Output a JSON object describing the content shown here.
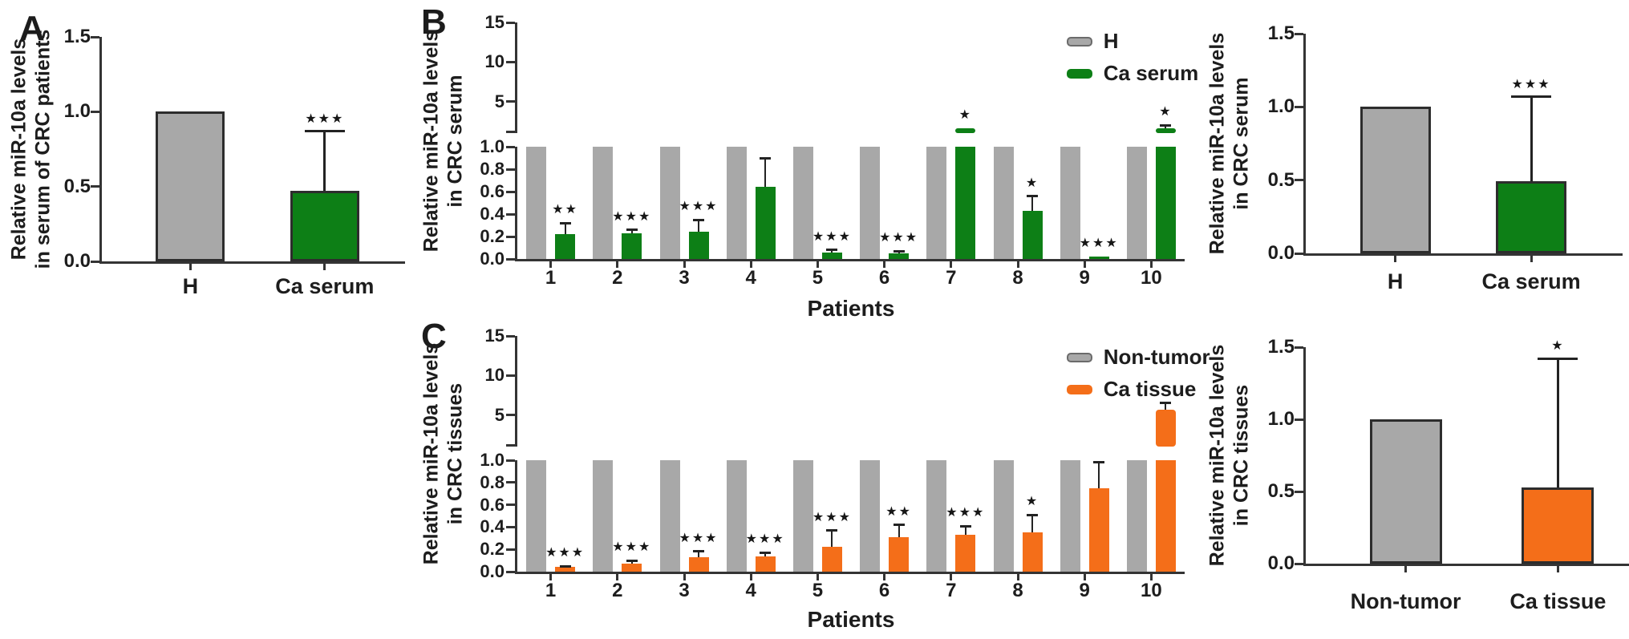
{
  "panels": [
    {
      "label": "A"
    },
    {
      "label": "B"
    },
    {
      "label": "C"
    }
  ],
  "colors": {
    "gray": "#a8a8a8",
    "green": "#0d7f16",
    "orange": "#f46e19",
    "bar_border": "#2d2d2d",
    "axis": "#343434",
    "swatch_gray_border": "#6b6b6b"
  },
  "chart_data": [
    {
      "id": "A",
      "type": "bar",
      "ylabel_lines": [
        "Relative miR-10a levels",
        "in serum of CRC patients"
      ],
      "ymax": 1.5,
      "yticks": [
        "0.0",
        "0.5",
        "1.0",
        "1.5"
      ],
      "categories": [
        "H",
        "Ca serum"
      ],
      "bars": [
        {
          "category": "H",
          "value": 1.0,
          "err_top": null,
          "sig": "",
          "color": "gray"
        },
        {
          "category": "Ca serum",
          "value": 0.47,
          "err_top": 0.87,
          "sig": "***",
          "color": "green"
        }
      ]
    },
    {
      "id": "B-patients",
      "type": "grouped_bar_broken_axis",
      "ylabel_lines": [
        "Relative miR-10a levels",
        "in CRC serum"
      ],
      "xlabel": "Patients",
      "upper_axis": {
        "range": [
          1,
          15
        ],
        "ticks": [
          "5",
          "10",
          "15"
        ]
      },
      "lower_axis": {
        "range": [
          0,
          1
        ],
        "ticks": [
          "0.0",
          "0.2",
          "0.4",
          "0.6",
          "0.8",
          "1.0"
        ]
      },
      "categories": [
        "1",
        "2",
        "3",
        "4",
        "5",
        "6",
        "7",
        "8",
        "9",
        "10"
      ],
      "legend": [
        {
          "label": "H",
          "color": "gray"
        },
        {
          "label": "Ca serum",
          "color": "green"
        }
      ],
      "series": [
        {
          "name": "H",
          "color": "gray",
          "values": [
            1,
            1,
            1,
            1,
            1,
            1,
            1,
            1,
            1,
            1
          ]
        },
        {
          "name": "Ca serum",
          "color": "green",
          "points": [
            {
              "value": 0.22,
              "err_top": 0.32,
              "sig": "**"
            },
            {
              "value": 0.23,
              "err_top": 0.26,
              "sig": "***"
            },
            {
              "value": 0.24,
              "err_top": 0.35,
              "sig": "***"
            },
            {
              "value": 0.64,
              "err_top": 0.9,
              "sig": ""
            },
            {
              "value": 0.06,
              "err_top": 0.08,
              "sig": "***"
            },
            {
              "value": 0.05,
              "err_top": 0.07,
              "sig": "***"
            },
            {
              "value": 1.5,
              "err_top": null,
              "sig": "*"
            },
            {
              "value": 0.43,
              "err_top": 0.56,
              "sig": "*"
            },
            {
              "value": 0.02,
              "err_top": null,
              "sig": "***"
            },
            {
              "value": 1.5,
              "err_top": 2.0,
              "sig": "*"
            }
          ]
        }
      ]
    },
    {
      "id": "B-summary",
      "type": "bar",
      "ylabel_lines": [
        "Relative miR-10a levels",
        "in CRC serum"
      ],
      "ymax": 1.5,
      "yticks": [
        "0.0",
        "0.5",
        "1.0",
        "1.5"
      ],
      "categories": [
        "H",
        "Ca serum"
      ],
      "bars": [
        {
          "category": "H",
          "value": 1.0,
          "err_top": null,
          "sig": "",
          "color": "gray"
        },
        {
          "category": "Ca serum",
          "value": 0.49,
          "err_top": 1.07,
          "sig": "***",
          "color": "green"
        }
      ]
    },
    {
      "id": "C-patients",
      "type": "grouped_bar_broken_axis",
      "ylabel_lines": [
        "Relative miR-10a levels",
        "in CRC tissues"
      ],
      "xlabel": "Patients",
      "upper_axis": {
        "range": [
          1,
          15
        ],
        "ticks": [
          "5",
          "10",
          "15"
        ]
      },
      "lower_axis": {
        "range": [
          0,
          1
        ],
        "ticks": [
          "0.0",
          "0.2",
          "0.4",
          "0.6",
          "0.8",
          "1.0"
        ]
      },
      "categories": [
        "1",
        "2",
        "3",
        "4",
        "5",
        "6",
        "7",
        "8",
        "9",
        "10"
      ],
      "legend": [
        {
          "label": "Non-tumor",
          "color": "gray"
        },
        {
          "label": "Ca tissue",
          "color": "orange"
        }
      ],
      "series": [
        {
          "name": "Non-tumor",
          "color": "gray",
          "values": [
            1,
            1,
            1,
            1,
            1,
            1,
            1,
            1,
            1,
            1
          ]
        },
        {
          "name": "Ca tissue",
          "color": "orange",
          "points": [
            {
              "value": 0.04,
              "err_top": 0.05,
              "sig": "***"
            },
            {
              "value": 0.07,
              "err_top": 0.1,
              "sig": "***"
            },
            {
              "value": 0.13,
              "err_top": 0.18,
              "sig": "***"
            },
            {
              "value": 0.14,
              "err_top": 0.17,
              "sig": "***"
            },
            {
              "value": 0.22,
              "err_top": 0.37,
              "sig": "***"
            },
            {
              "value": 0.31,
              "err_top": 0.42,
              "sig": "**"
            },
            {
              "value": 0.33,
              "err_top": 0.41,
              "sig": "***"
            },
            {
              "value": 0.35,
              "err_top": 0.51,
              "sig": "*"
            },
            {
              "value": 0.75,
              "err_top": 0.98,
              "sig": ""
            },
            {
              "value": 5.7,
              "err_top": 6.5,
              "sig": ""
            }
          ]
        }
      ]
    },
    {
      "id": "C-summary",
      "type": "bar",
      "ylabel_lines": [
        "Relative miR-10a levels",
        "in CRC tissues"
      ],
      "ymax": 1.5,
      "yticks": [
        "0.0",
        "0.5",
        "1.0",
        "1.5"
      ],
      "categories": [
        "Non-tumor",
        "Ca tissue"
      ],
      "bars": [
        {
          "category": "Non-tumor",
          "value": 1.0,
          "err_top": null,
          "sig": "",
          "color": "gray"
        },
        {
          "category": "Ca tissue",
          "value": 0.53,
          "err_top": 1.42,
          "sig": "*",
          "color": "orange"
        }
      ]
    }
  ]
}
